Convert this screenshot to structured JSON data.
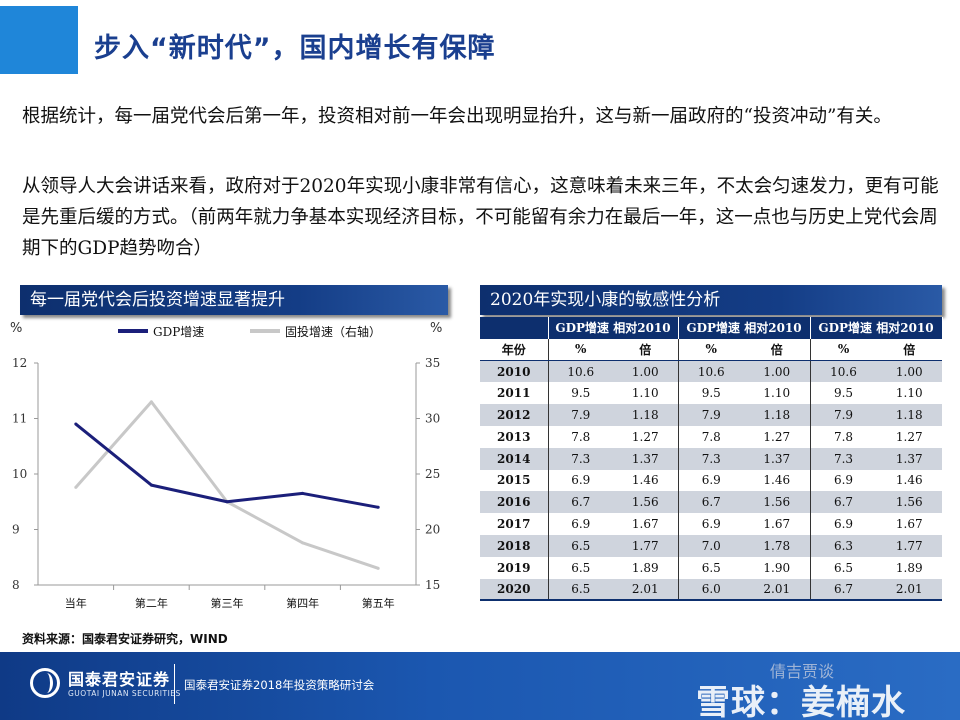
{
  "title": "步入“新时代”，国内增长有保障",
  "paragraphs": [
    "根据统计，每一届党代会后第一年，投资相对前一年会出现明显抬升，这与新一届政府的“投资冲动”有关。",
    "从领导人大会讲话来看，政府对于2020年实现小康非常有信心，这意味着未来三年，不太会匀速发力，更有可能是先重后缓的方式。（前两年就力争基本实现经济目标，不可能留有余力在最后一年，这一点也与历史上党代会周期下的GDP趋势吻合）"
  ],
  "left_panel_title": "每一届党代会后投资增速显著提升",
  "right_panel_title": "2020年实现小康的敏感性分析",
  "chart_data": {
    "type": "line",
    "categories": [
      "当年",
      "第二年",
      "第三年",
      "第四年",
      "第五年"
    ],
    "left_unit": "%",
    "right_unit": "%",
    "ylim_left": [
      8,
      12
    ],
    "ylim_right": [
      15,
      35
    ],
    "yticks_left": [
      "8",
      "9",
      "10",
      "11",
      "12"
    ],
    "yticks_right": [
      "15",
      "20",
      "25",
      "30",
      "35"
    ],
    "grid": false,
    "legend_position": "top",
    "series": [
      {
        "name": "GDP增速",
        "axis": "left",
        "color": "#1b1f7a",
        "values": [
          10.9,
          9.8,
          9.5,
          9.65,
          9.4
        ]
      },
      {
        "name": "固投增速（右轴）",
        "axis": "right",
        "color": "#c8c8c8",
        "values": [
          23.8,
          31.5,
          22.5,
          18.8,
          16.5
        ]
      }
    ]
  },
  "table": {
    "group_headers": [
      "GDP增速 相对2010",
      "GDP增速 相对2010",
      "GDP增速 相对2010"
    ],
    "sub_headers": [
      "年份",
      "%",
      "倍",
      "%",
      "倍",
      "%",
      "倍"
    ],
    "rows": [
      [
        "2010",
        "10.6",
        "1.00",
        "10.6",
        "1.00",
        "10.6",
        "1.00"
      ],
      [
        "2011",
        "9.5",
        "1.10",
        "9.5",
        "1.10",
        "9.5",
        "1.10"
      ],
      [
        "2012",
        "7.9",
        "1.18",
        "7.9",
        "1.18",
        "7.9",
        "1.18"
      ],
      [
        "2013",
        "7.8",
        "1.27",
        "7.8",
        "1.27",
        "7.8",
        "1.27"
      ],
      [
        "2014",
        "7.3",
        "1.37",
        "7.3",
        "1.37",
        "7.3",
        "1.37"
      ],
      [
        "2015",
        "6.9",
        "1.46",
        "6.9",
        "1.46",
        "6.9",
        "1.46"
      ],
      [
        "2016",
        "6.7",
        "1.56",
        "6.7",
        "1.56",
        "6.7",
        "1.56"
      ],
      [
        "2017",
        "6.9",
        "1.67",
        "6.9",
        "1.67",
        "6.9",
        "1.67"
      ],
      [
        "2018",
        "6.5",
        "1.77",
        "7.0",
        "1.78",
        "6.3",
        "1.77"
      ],
      [
        "2019",
        "6.5",
        "1.89",
        "6.5",
        "1.90",
        "6.5",
        "1.89"
      ],
      [
        "2020",
        "6.5",
        "2.01",
        "6.0",
        "2.01",
        "6.7",
        "2.01"
      ]
    ]
  },
  "source": "资料来源：国泰君安证券研究，WIND",
  "footer": {
    "brand": "国泰君安证券",
    "brand_sub": "GUOTAI JUNAN SECURITIES",
    "event": "国泰君安证券2018年投资策略研讨会",
    "watermark_small": "倩吉贾谈",
    "watermark_big": "雪球：姜楠水"
  },
  "colors": {
    "accent": "#1f86d9",
    "navy": "#0d2f6e",
    "title": "#1a3f8f"
  }
}
